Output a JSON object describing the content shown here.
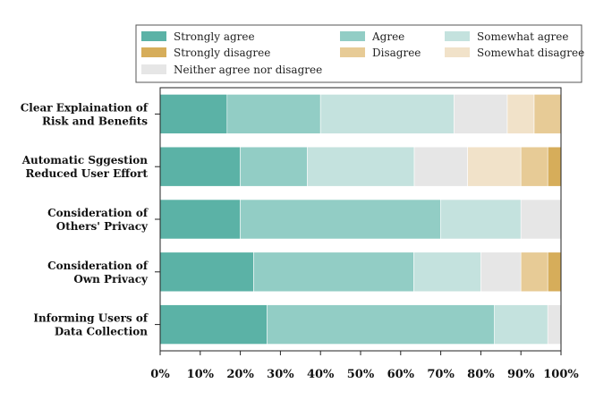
{
  "chart_data": {
    "type": "bar",
    "orientation": "horizontal",
    "stacked": true,
    "title": "",
    "xlabel": "",
    "ylabel": "",
    "xlim": [
      0,
      100
    ],
    "grid": false,
    "legend_position": "top",
    "x_tick_labels": [
      "0%",
      "10%",
      "20%",
      "30%",
      "40%",
      "50%",
      "60%",
      "70%",
      "80%",
      "90%",
      "100%"
    ],
    "categories": [
      [
        "Clear Explaination of",
        "Risk and Benefits"
      ],
      [
        "Automatic Sggestion",
        "Reduced User Effort"
      ],
      [
        "Consideration of",
        "Others' Privacy"
      ],
      [
        "Consideration of",
        "Own Privacy"
      ],
      [
        "Informing Users of",
        "Data Collection"
      ]
    ],
    "series": [
      {
        "name": "Strongly agree",
        "color": "#5bb2a6",
        "values": [
          16.7,
          20.0,
          20.0,
          23.3,
          26.7
        ]
      },
      {
        "name": "Agree",
        "color": "#92cdc5",
        "values": [
          23.3,
          16.7,
          50.0,
          40.0,
          56.7
        ]
      },
      {
        "name": "Somewhat agree",
        "color": "#c4e2de",
        "values": [
          33.3,
          26.7,
          20.0,
          16.7,
          13.3
        ]
      },
      {
        "name": "Neither agree nor disagree",
        "color": "#e6e6e6",
        "values": [
          13.3,
          13.3,
          10.0,
          10.0,
          3.3
        ]
      },
      {
        "name": "Somewhat disagree",
        "color": "#f1e2c9",
        "values": [
          6.7,
          13.3,
          0,
          0,
          0
        ]
      },
      {
        "name": "Disagree",
        "color": "#e7cb96",
        "values": [
          6.7,
          6.7,
          0,
          6.7,
          0
        ]
      },
      {
        "name": "Strongly disagree",
        "color": "#d6ad5a",
        "values": [
          0,
          3.3,
          0,
          3.3,
          0
        ]
      }
    ],
    "legend_order": [
      "Strongly agree",
      "Agree",
      "Somewhat agree",
      "Strongly disagree",
      "Disagree",
      "Somewhat disagree",
      "Neither agree nor disagree"
    ]
  }
}
